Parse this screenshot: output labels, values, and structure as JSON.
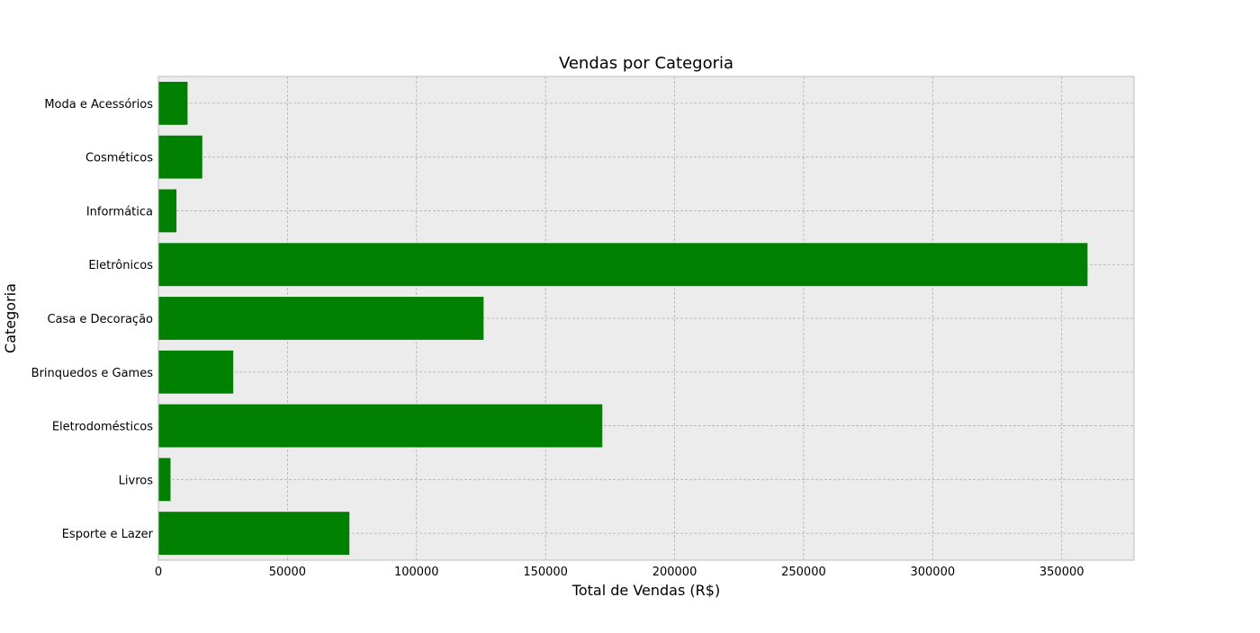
{
  "chart_data": {
    "type": "bar",
    "orientation": "horizontal",
    "title": "Vendas por Categoria",
    "xlabel": "Total de Vendas (R$)",
    "ylabel": "Categoria",
    "categories": [
      "Esporte e Lazer",
      "Livros",
      "Eletrodomésticos",
      "Brinquedos e Games",
      "Casa e Decoração",
      "Eletrônicos",
      "Informática",
      "Cosméticos",
      "Moda e Acessórios"
    ],
    "values": [
      74000,
      4700,
      172000,
      29000,
      126000,
      360000,
      7000,
      17000,
      11300
    ],
    "xlim": [
      0,
      378000
    ],
    "xticks": [
      0,
      50000,
      100000,
      150000,
      200000,
      250000,
      300000,
      350000
    ],
    "xtick_labels": [
      "0",
      "50000",
      "100000",
      "150000",
      "200000",
      "250000",
      "300000",
      "350000"
    ],
    "grid": true,
    "bar_color": "#008000",
    "plot_background": "#ececec",
    "grid_color": "#b0b0b0"
  }
}
